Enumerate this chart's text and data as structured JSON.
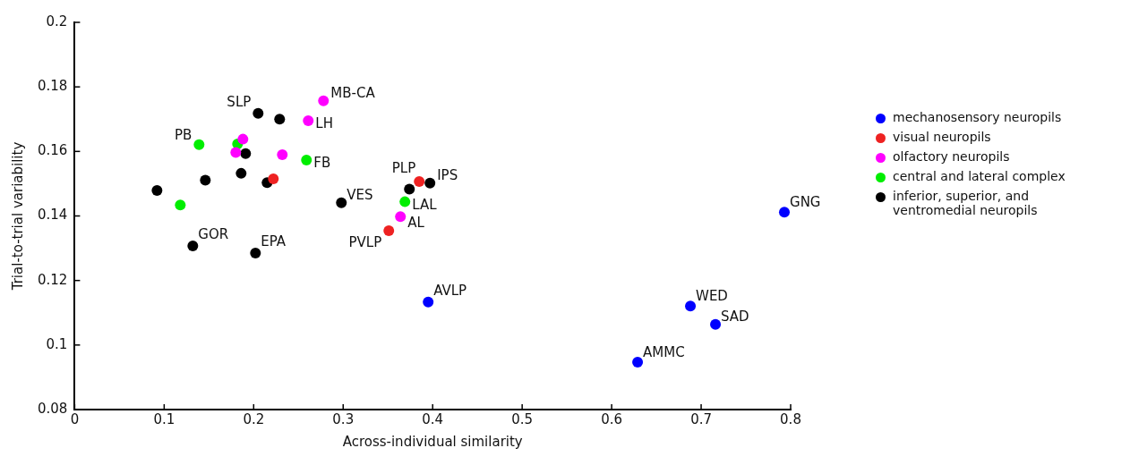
{
  "chart_data": {
    "type": "scatter",
    "xlabel": "Across-individual similarity",
    "ylabel": "Trial-to-trial variability",
    "xlim": [
      0,
      0.8
    ],
    "xticks": [
      0,
      0.1,
      0.2,
      0.3,
      0.4,
      0.5,
      0.6,
      0.7,
      0.8
    ],
    "ylim": [
      0.08,
      0.2
    ],
    "yticks": [
      0.08,
      0.1,
      0.12,
      0.14,
      0.16,
      0.18,
      0.2
    ],
    "grid": false,
    "legend": "right",
    "marker": "circle",
    "series": [
      {
        "name": "mechanosensory neuropils",
        "color": "#0000ff",
        "x": [
          0.395,
          0.793,
          0.688,
          0.716,
          0.629
        ],
        "values": [
          0.1133,
          0.1412,
          0.1121,
          0.1064,
          0.0947
        ]
      },
      {
        "name": "visual neuropils",
        "color": "#ee2222",
        "x": [
          0.222,
          0.385,
          0.351
        ],
        "values": [
          0.1515,
          0.1507,
          0.1354
        ]
      },
      {
        "name": "olfactory neuropils",
        "color": "#ff00ff",
        "x": [
          0.188,
          0.18,
          0.232,
          0.261,
          0.278,
          0.364
        ],
        "values": [
          0.1638,
          0.1597,
          0.159,
          0.1695,
          0.1757,
          0.1398
        ]
      },
      {
        "name": "central and lateral complex",
        "color": "#00ee00",
        "x": [
          0.118,
          0.139,
          0.182,
          0.259,
          0.369
        ],
        "values": [
          0.1434,
          0.1621,
          0.1623,
          0.1573,
          0.1444
        ]
      },
      {
        "name": "inferior, superior, and ventromedial neuropils",
        "color": "#000000",
        "x": [
          0.092,
          0.146,
          0.132,
          0.186,
          0.191,
          0.205,
          0.229,
          0.215,
          0.202,
          0.298,
          0.374,
          0.397
        ],
        "values": [
          0.1479,
          0.1511,
          0.1307,
          0.1532,
          0.1593,
          0.1718,
          0.17,
          0.1503,
          0.1285,
          0.1441,
          0.1483,
          0.1502
        ]
      }
    ],
    "annotations": [
      {
        "text": "SLP",
        "x": 0.205,
        "y": 0.1718
      },
      {
        "text": "MB-CA",
        "x": 0.278,
        "y": 0.1757
      },
      {
        "text": "LH",
        "x": 0.261,
        "y": 0.1695
      },
      {
        "text": "PB",
        "x": 0.139,
        "y": 0.1621
      },
      {
        "text": "FB",
        "x": 0.259,
        "y": 0.1573
      },
      {
        "text": "PLP",
        "x": 0.385,
        "y": 0.1507
      },
      {
        "text": "IPS",
        "x": 0.397,
        "y": 0.1502
      },
      {
        "text": "VES",
        "x": 0.298,
        "y": 0.1441
      },
      {
        "text": "LAL",
        "x": 0.369,
        "y": 0.1444
      },
      {
        "text": "AL",
        "x": 0.364,
        "y": 0.1398
      },
      {
        "text": "PVLP",
        "x": 0.351,
        "y": 0.1354
      },
      {
        "text": "GOR",
        "x": 0.132,
        "y": 0.1307
      },
      {
        "text": "EPA",
        "x": 0.202,
        "y": 0.1285
      },
      {
        "text": "GNG",
        "x": 0.793,
        "y": 0.1412
      },
      {
        "text": "AVLP",
        "x": 0.395,
        "y": 0.1133
      },
      {
        "text": "WED",
        "x": 0.688,
        "y": 0.1121
      },
      {
        "text": "SAD",
        "x": 0.716,
        "y": 0.1064
      },
      {
        "text": "AMMC",
        "x": 0.629,
        "y": 0.0947
      }
    ]
  }
}
